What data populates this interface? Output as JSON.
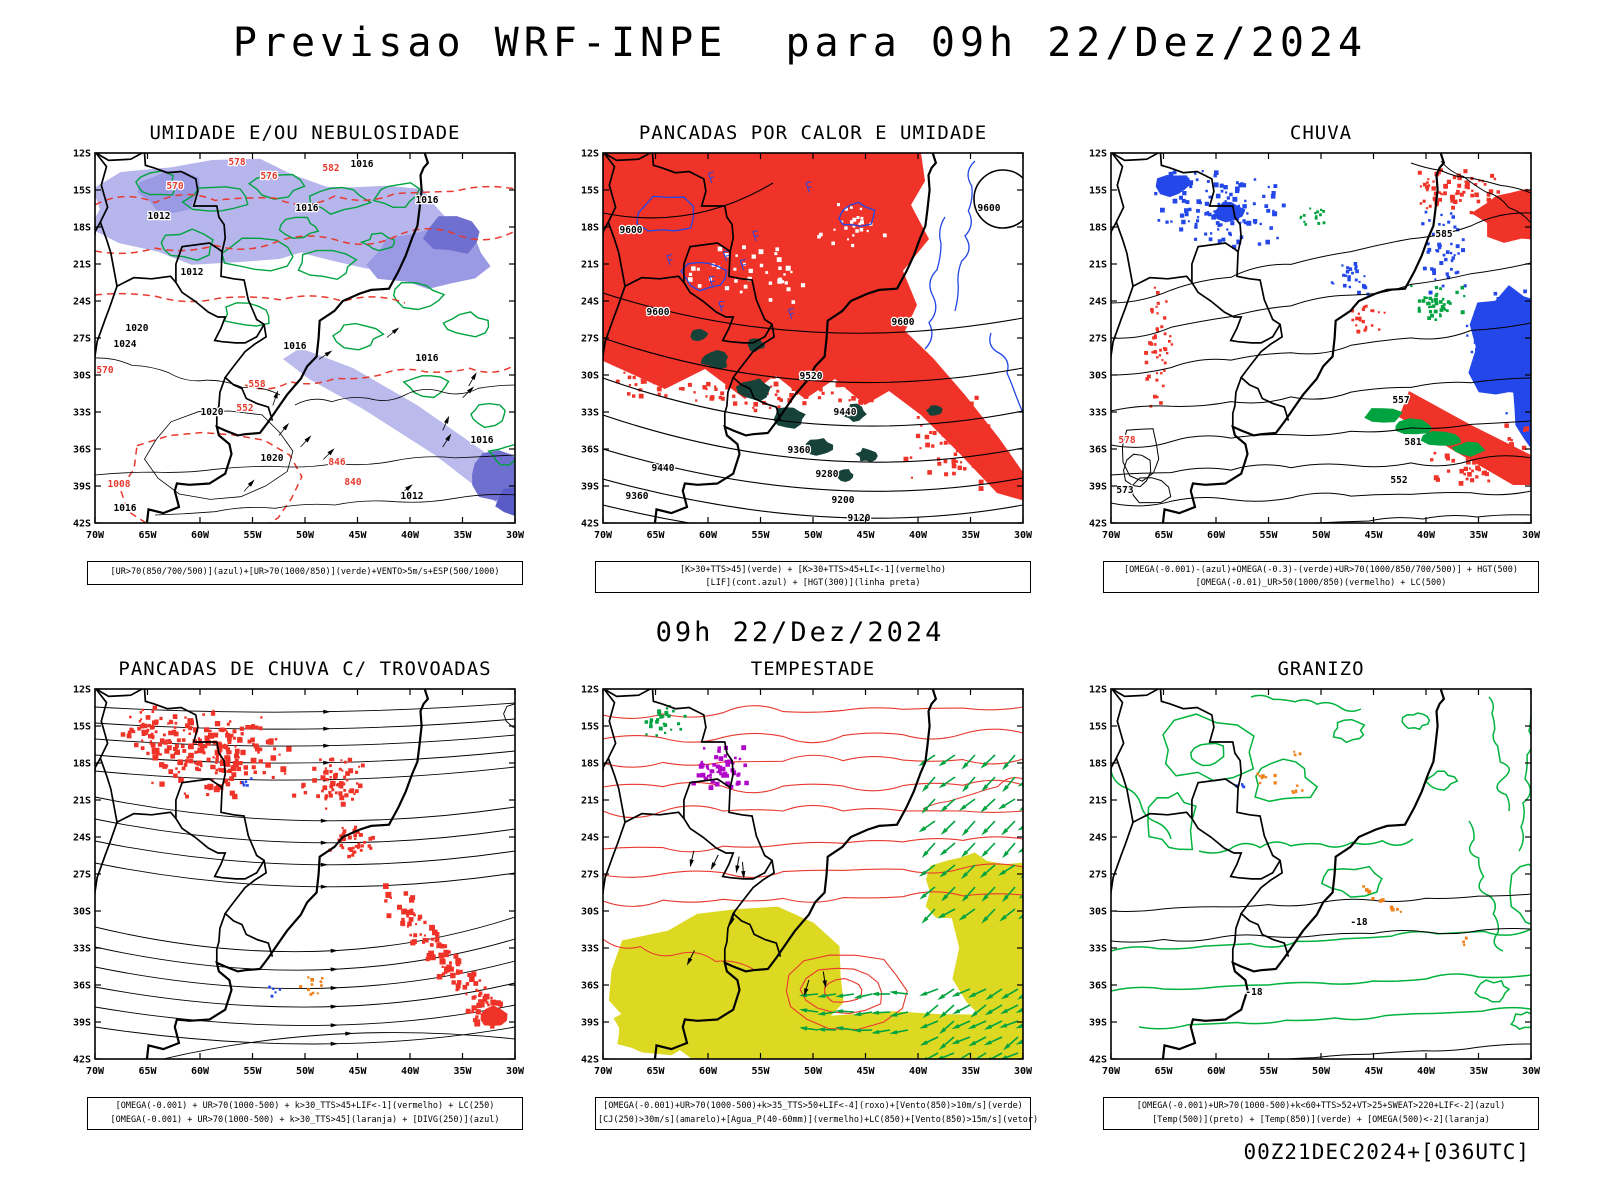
{
  "page": {
    "title": "Previsao WRF-INPE  para 09h 22/Dez/2024",
    "mid_caption": "09h 22/Dez/2024",
    "footer": "00Z21DEC2024+[036UTC]"
  },
  "axes": {
    "lat": [
      "12S",
      "15S",
      "18S",
      "21S",
      "24S",
      "27S",
      "30S",
      "33S",
      "36S",
      "39S",
      "42S"
    ],
    "lon": [
      "70W",
      "65W",
      "60W",
      "55W",
      "50W",
      "45W",
      "40W",
      "35W",
      "30W"
    ]
  },
  "colors": {
    "red": "#f03328",
    "red_line": "#e8392e",
    "green": "#00a33f",
    "green_bright": "#00b33c",
    "blue": "#2347e8",
    "shade1": "#b6b6ec",
    "shade2": "#9a9ae4",
    "shade3": "#6f6fd0",
    "shade4": "#5b5bc8",
    "yellow": "#ddd822",
    "orange": "#f08018",
    "magenta": "#b007c9",
    "teal": "#16423a"
  },
  "panels": [
    {
      "id": "umidade",
      "title": "UMIDADE E/OU NEBULOSIDADE",
      "caption": [
        "[UR>70(850/700/500)](azul)+[UR>70(1000/850)](verde)+VENTO>5m/s+ESP(500/1000)"
      ],
      "labels": [
        [
          "1016",
          267,
          14,
          "k"
        ],
        [
          "1016",
          332,
          50,
          "k"
        ],
        [
          "1016",
          212,
          58,
          "k"
        ],
        [
          "1012",
          64,
          66,
          "k"
        ],
        [
          "1012",
          97,
          122,
          "k"
        ],
        [
          "1020",
          42,
          178,
          "k"
        ],
        [
          "1024",
          30,
          194,
          "k"
        ],
        [
          "1016",
          200,
          196,
          "k"
        ],
        [
          "1016",
          332,
          208,
          "k"
        ],
        [
          "1020",
          117,
          262,
          "k"
        ],
        [
          "1016",
          387,
          290,
          "k"
        ],
        [
          "1020",
          177,
          308,
          "k"
        ],
        [
          "1012",
          317,
          346,
          "k"
        ],
        [
          "1016",
          30,
          358,
          "k"
        ],
        [
          "578",
          142,
          12,
          "r"
        ],
        [
          "576",
          174,
          26,
          "r"
        ],
        [
          "570",
          80,
          36,
          "r"
        ],
        [
          "582",
          236,
          18,
          "r"
        ],
        [
          "570",
          10,
          220,
          "r"
        ],
        [
          "558",
          162,
          234,
          "r"
        ],
        [
          "552",
          150,
          258,
          "r"
        ],
        [
          "846",
          242,
          312,
          "r"
        ],
        [
          "840",
          258,
          332,
          "r"
        ],
        [
          "1008",
          24,
          334,
          "r"
        ]
      ]
    },
    {
      "id": "calor",
      "title": "PANCADAS POR CALOR E UMIDADE",
      "caption": [
        "[K>30+TTS>45](verde) + [K>30+TTS>45+LI<-1](vermelho)",
        "[LIF](cont.azul) + [HGT(300)](linha preta)"
      ],
      "labels": [
        [
          "9600",
          28,
          80,
          "k"
        ],
        [
          "9600",
          55,
          162,
          "k"
        ],
        [
          "9600",
          300,
          172,
          "k"
        ],
        [
          "9600",
          386,
          58,
          "k"
        ],
        [
          "9520",
          208,
          226,
          "k"
        ],
        [
          "9440",
          242,
          262,
          "k"
        ],
        [
          "9360",
          196,
          300,
          "k"
        ],
        [
          "9280",
          224,
          324,
          "k"
        ],
        [
          "9200",
          240,
          350,
          "k"
        ],
        [
          "9120",
          256,
          368,
          "k"
        ],
        [
          "9440",
          60,
          318,
          "k"
        ],
        [
          "9360",
          34,
          346,
          "k"
        ]
      ]
    },
    {
      "id": "chuva",
      "title": "CHUVA",
      "caption": [
        "[OMEGA(-0.001)-(azul)+OMEGA(-0.3)-(verde)+UR>70(1000/850/700/500)] + HGT(500)",
        "[OMEGA(-0.01)_UR>50(1000/850)(vermelho) + LC(500)"
      ],
      "labels": [
        [
          "585",
          333,
          84,
          "k"
        ],
        [
          "581",
          302,
          292,
          "k"
        ],
        [
          "557",
          290,
          250,
          "k"
        ],
        [
          "552",
          288,
          330,
          "k"
        ],
        [
          "573",
          14,
          340,
          "k"
        ],
        [
          "578",
          16,
          290,
          "r"
        ]
      ]
    },
    {
      "id": "trovoadas",
      "title": "PANCADAS DE CHUVA C/ TROVOADAS",
      "caption": [
        "[OMEGA(-0.001) + UR>70(1000-500) + k>30_TTS>45+LIF<-1](vermelho) + LC(250)",
        "[OMEGA(-0.001) + UR>70(1000-500) + k>30_TTS>45](laranja) + [DIVG(250)](azul)"
      ],
      "labels": []
    },
    {
      "id": "tempestade",
      "title": "TEMPESTADE",
      "caption": [
        "[OMEGA(-0.001)+UR>70(1000-500)+k>35_TTS>50+LIF<-4](roxo)+[Vento(850)>10m/s](verde)",
        "[CJ(250)>30m/s](amarelo)+[Agua_P(40-60mm)](vermelho)+LC(850)+[Vento(850)>15m/s](vetor)"
      ],
      "labels": []
    },
    {
      "id": "granizo",
      "title": "GRANIZO",
      "caption": [
        "[OMEGA(-0.001)+UR>70(1000-500)+k<60+TTS>52+VT>25+SWEAT>220+LIF<-2](azul)",
        "[Temp(500)](preto) + [Temp(850)](verde) + [OMEGA(500)<-2](laranja)"
      ],
      "labels": [
        [
          "-18",
          248,
          236,
          "k"
        ],
        [
          "-18",
          143,
          306,
          "k"
        ]
      ]
    }
  ]
}
